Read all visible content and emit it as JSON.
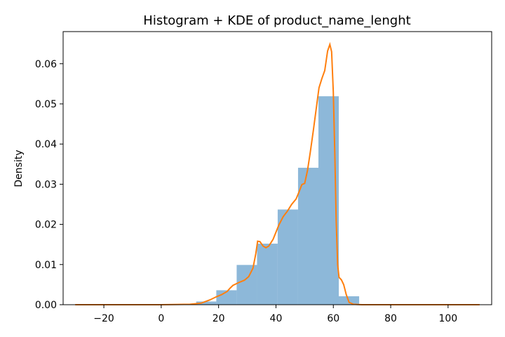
{
  "chart_data": {
    "type": "bar",
    "title": "Histogram + KDE of product_name_lenght",
    "xlabel": "",
    "ylabel": "Density",
    "xlim": [
      -34.2,
      115.2
    ],
    "ylim": [
      0,
      0.068
    ],
    "xticks": [
      -20,
      0,
      20,
      40,
      60,
      80,
      100
    ],
    "xtick_labels": [
      "−20",
      "0",
      "20",
      "40",
      "60",
      "80",
      "100"
    ],
    "yticks": [
      0.0,
      0.01,
      0.02,
      0.03,
      0.04,
      0.05,
      0.06
    ],
    "ytick_labels": [
      "0.00",
      "0.01",
      "0.02",
      "0.03",
      "0.04",
      "0.05",
      "0.06"
    ],
    "grid": false,
    "histogram": {
      "bins": [
        {
          "x0": 12.2,
          "x1": 19.2,
          "density": 0.0008
        },
        {
          "x0": 19.2,
          "x1": 26.3,
          "density": 0.0036
        },
        {
          "x0": 26.3,
          "x1": 33.4,
          "density": 0.0099
        },
        {
          "x0": 33.4,
          "x1": 40.6,
          "density": 0.0152
        },
        {
          "x0": 40.6,
          "x1": 47.7,
          "density": 0.0237
        },
        {
          "x0": 47.7,
          "x1": 54.8,
          "density": 0.0341
        },
        {
          "x0": 54.8,
          "x1": 61.9,
          "density": 0.0519
        },
        {
          "x0": 61.9,
          "x1": 69.0,
          "density": 0.0021
        }
      ],
      "color": "#8db8d9"
    },
    "kde": {
      "color": "#ff7f0e",
      "points": [
        [
          -30,
          0.0
        ],
        [
          0,
          0.0
        ],
        [
          10,
          0.0001
        ],
        [
          14,
          0.0004
        ],
        [
          17,
          0.0012
        ],
        [
          19,
          0.0019
        ],
        [
          21,
          0.0025
        ],
        [
          23,
          0.0033
        ],
        [
          24,
          0.0041
        ],
        [
          25,
          0.0048
        ],
        [
          27,
          0.0055
        ],
        [
          29,
          0.0061
        ],
        [
          30.5,
          0.007
        ],
        [
          32,
          0.0091
        ],
        [
          33,
          0.0128
        ],
        [
          33.6,
          0.0158
        ],
        [
          34.4,
          0.0157
        ],
        [
          35.5,
          0.0146
        ],
        [
          36.5,
          0.0142
        ],
        [
          37.5,
          0.0146
        ],
        [
          39,
          0.0163
        ],
        [
          41,
          0.0198
        ],
        [
          42.5,
          0.0219
        ],
        [
          44,
          0.0233
        ],
        [
          45.5,
          0.025
        ],
        [
          47,
          0.0263
        ],
        [
          48,
          0.028
        ],
        [
          49,
          0.0299
        ],
        [
          50,
          0.0302
        ],
        [
          51,
          0.0334
        ],
        [
          52,
          0.0381
        ],
        [
          53,
          0.0432
        ],
        [
          54,
          0.0486
        ],
        [
          55,
          0.054
        ],
        [
          56,
          0.0563
        ],
        [
          57,
          0.0583
        ],
        [
          58,
          0.0632
        ],
        [
          58.8,
          0.0648
        ],
        [
          59.4,
          0.063
        ],
        [
          60,
          0.053
        ],
        [
          60.5,
          0.038
        ],
        [
          61,
          0.021
        ],
        [
          61.5,
          0.01
        ],
        [
          62,
          0.0068
        ],
        [
          62.8,
          0.0062
        ],
        [
          63.6,
          0.005
        ],
        [
          64.5,
          0.0025
        ],
        [
          65.5,
          0.0006
        ],
        [
          67,
          0.0001
        ],
        [
          70,
          0.0
        ],
        [
          90,
          0.0
        ],
        [
          111,
          0.0
        ]
      ]
    }
  }
}
